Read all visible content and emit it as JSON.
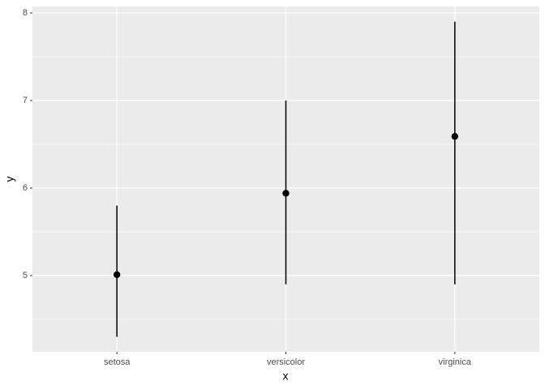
{
  "chart_data": {
    "type": "pointrange",
    "x_label": "x",
    "y_label": "y",
    "categories": [
      "setosa",
      "versicolor",
      "virginica"
    ],
    "values": [
      5.01,
      5.94,
      6.59
    ],
    "lower": [
      4.3,
      4.9,
      4.9
    ],
    "upper": [
      5.8,
      7.0,
      7.9
    ],
    "color": "#000000",
    "ylim": [
      4.13,
      8.074
    ],
    "yticks": [
      5,
      6,
      7,
      8
    ],
    "grid": true,
    "minor_grid": true
  }
}
